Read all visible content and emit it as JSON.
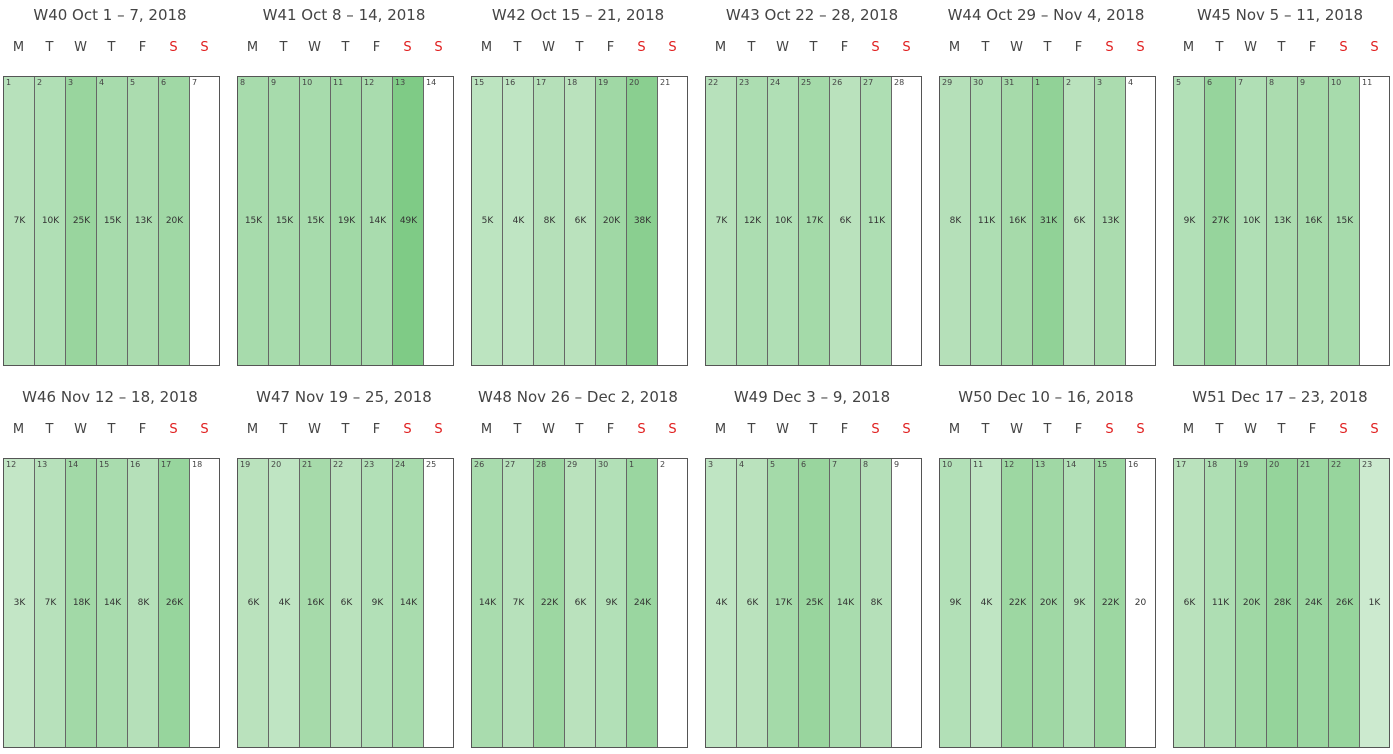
{
  "dow": [
    "M",
    "T",
    "W",
    "T",
    "F",
    "S",
    "S"
  ],
  "colors": {
    "weekend_label": "#e02020",
    "cell_base": "#d9efdb",
    "cell_max": "#7fcb86",
    "empty": "#ffffff"
  },
  "chart_data": {
    "type": "heatmap",
    "value_scale_max": 49,
    "weeks": [
      {
        "title": "W40 Oct 1 – 7, 2018",
        "days": [
          {
            "d": "1",
            "v": "7K",
            "n": 7
          },
          {
            "d": "2",
            "v": "10K",
            "n": 10
          },
          {
            "d": "3",
            "v": "25K",
            "n": 25
          },
          {
            "d": "4",
            "v": "15K",
            "n": 15
          },
          {
            "d": "5",
            "v": "13K",
            "n": 13
          },
          {
            "d": "6",
            "v": "20K",
            "n": 20
          },
          {
            "d": "7",
            "v": "",
            "n": 0
          }
        ]
      },
      {
        "title": "W41 Oct 8 – 14, 2018",
        "days": [
          {
            "d": "8",
            "v": "15K",
            "n": 15
          },
          {
            "d": "9",
            "v": "15K",
            "n": 15
          },
          {
            "d": "10",
            "v": "15K",
            "n": 15
          },
          {
            "d": "11",
            "v": "19K",
            "n": 19
          },
          {
            "d": "12",
            "v": "14K",
            "n": 14
          },
          {
            "d": "13",
            "v": "49K",
            "n": 49
          },
          {
            "d": "14",
            "v": "",
            "n": 0
          }
        ]
      },
      {
        "title": "W42 Oct 15 – 21, 2018",
        "days": [
          {
            "d": "15",
            "v": "5K",
            "n": 5
          },
          {
            "d": "16",
            "v": "4K",
            "n": 4
          },
          {
            "d": "17",
            "v": "8K",
            "n": 8
          },
          {
            "d": "18",
            "v": "6K",
            "n": 6
          },
          {
            "d": "19",
            "v": "20K",
            "n": 20
          },
          {
            "d": "20",
            "v": "38K",
            "n": 38
          },
          {
            "d": "21",
            "v": "",
            "n": 0
          }
        ]
      },
      {
        "title": "W43 Oct 22 – 28, 2018",
        "days": [
          {
            "d": "22",
            "v": "7K",
            "n": 7
          },
          {
            "d": "23",
            "v": "12K",
            "n": 12
          },
          {
            "d": "24",
            "v": "10K",
            "n": 10
          },
          {
            "d": "25",
            "v": "17K",
            "n": 17
          },
          {
            "d": "26",
            "v": "6K",
            "n": 6
          },
          {
            "d": "27",
            "v": "11K",
            "n": 11
          },
          {
            "d": "28",
            "v": "",
            "n": 0
          }
        ]
      },
      {
        "title": "W44 Oct 29 – Nov 4, 2018",
        "days": [
          {
            "d": "29",
            "v": "8K",
            "n": 8
          },
          {
            "d": "30",
            "v": "11K",
            "n": 11
          },
          {
            "d": "31",
            "v": "16K",
            "n": 16
          },
          {
            "d": "1",
            "v": "31K",
            "n": 31
          },
          {
            "d": "2",
            "v": "6K",
            "n": 6
          },
          {
            "d": "3",
            "v": "13K",
            "n": 13
          },
          {
            "d": "4",
            "v": "",
            "n": 0
          }
        ]
      },
      {
        "title": "W45 Nov 5 – 11, 2018",
        "days": [
          {
            "d": "5",
            "v": "9K",
            "n": 9
          },
          {
            "d": "6",
            "v": "27K",
            "n": 27
          },
          {
            "d": "7",
            "v": "10K",
            "n": 10
          },
          {
            "d": "8",
            "v": "13K",
            "n": 13
          },
          {
            "d": "9",
            "v": "16K",
            "n": 16
          },
          {
            "d": "10",
            "v": "15K",
            "n": 15
          },
          {
            "d": "11",
            "v": "",
            "n": 0
          }
        ]
      },
      {
        "title": "W46 Nov 12 – 18, 2018",
        "days": [
          {
            "d": "12",
            "v": "3K",
            "n": 3
          },
          {
            "d": "13",
            "v": "7K",
            "n": 7
          },
          {
            "d": "14",
            "v": "18K",
            "n": 18
          },
          {
            "d": "15",
            "v": "14K",
            "n": 14
          },
          {
            "d": "16",
            "v": "8K",
            "n": 8
          },
          {
            "d": "17",
            "v": "26K",
            "n": 26
          },
          {
            "d": "18",
            "v": "",
            "n": 0
          }
        ]
      },
      {
        "title": "W47 Nov 19 – 25, 2018",
        "days": [
          {
            "d": "19",
            "v": "6K",
            "n": 6
          },
          {
            "d": "20",
            "v": "4K",
            "n": 4
          },
          {
            "d": "21",
            "v": "16K",
            "n": 16
          },
          {
            "d": "22",
            "v": "6K",
            "n": 6
          },
          {
            "d": "23",
            "v": "9K",
            "n": 9
          },
          {
            "d": "24",
            "v": "14K",
            "n": 14
          },
          {
            "d": "25",
            "v": "",
            "n": 0
          }
        ]
      },
      {
        "title": "W48 Nov 26 – Dec 2, 2018",
        "days": [
          {
            "d": "26",
            "v": "14K",
            "n": 14
          },
          {
            "d": "27",
            "v": "7K",
            "n": 7
          },
          {
            "d": "28",
            "v": "22K",
            "n": 22
          },
          {
            "d": "29",
            "v": "6K",
            "n": 6
          },
          {
            "d": "30",
            "v": "9K",
            "n": 9
          },
          {
            "d": "1",
            "v": "24K",
            "n": 24
          },
          {
            "d": "2",
            "v": "",
            "n": 0
          }
        ]
      },
      {
        "title": "W49 Dec 3 – 9, 2018",
        "days": [
          {
            "d": "3",
            "v": "4K",
            "n": 4
          },
          {
            "d": "4",
            "v": "6K",
            "n": 6
          },
          {
            "d": "5",
            "v": "17K",
            "n": 17
          },
          {
            "d": "6",
            "v": "25K",
            "n": 25
          },
          {
            "d": "7",
            "v": "14K",
            "n": 14
          },
          {
            "d": "8",
            "v": "8K",
            "n": 8
          },
          {
            "d": "9",
            "v": "",
            "n": 0
          }
        ]
      },
      {
        "title": "W50 Dec 10 – 16, 2018",
        "days": [
          {
            "d": "10",
            "v": "9K",
            "n": 9
          },
          {
            "d": "11",
            "v": "4K",
            "n": 4
          },
          {
            "d": "12",
            "v": "22K",
            "n": 22
          },
          {
            "d": "13",
            "v": "20K",
            "n": 20
          },
          {
            "d": "14",
            "v": "9K",
            "n": 9
          },
          {
            "d": "15",
            "v": "22K",
            "n": 22
          },
          {
            "d": "16",
            "v": "20",
            "n": 0.02
          }
        ]
      },
      {
        "title": "W51 Dec 17 – 23, 2018",
        "days": [
          {
            "d": "17",
            "v": "6K",
            "n": 6
          },
          {
            "d": "18",
            "v": "11K",
            "n": 11
          },
          {
            "d": "19",
            "v": "20K",
            "n": 20
          },
          {
            "d": "20",
            "v": "28K",
            "n": 28
          },
          {
            "d": "21",
            "v": "24K",
            "n": 24
          },
          {
            "d": "22",
            "v": "26K",
            "n": 26
          },
          {
            "d": "23",
            "v": "1K",
            "n": 1
          }
        ]
      }
    ]
  }
}
